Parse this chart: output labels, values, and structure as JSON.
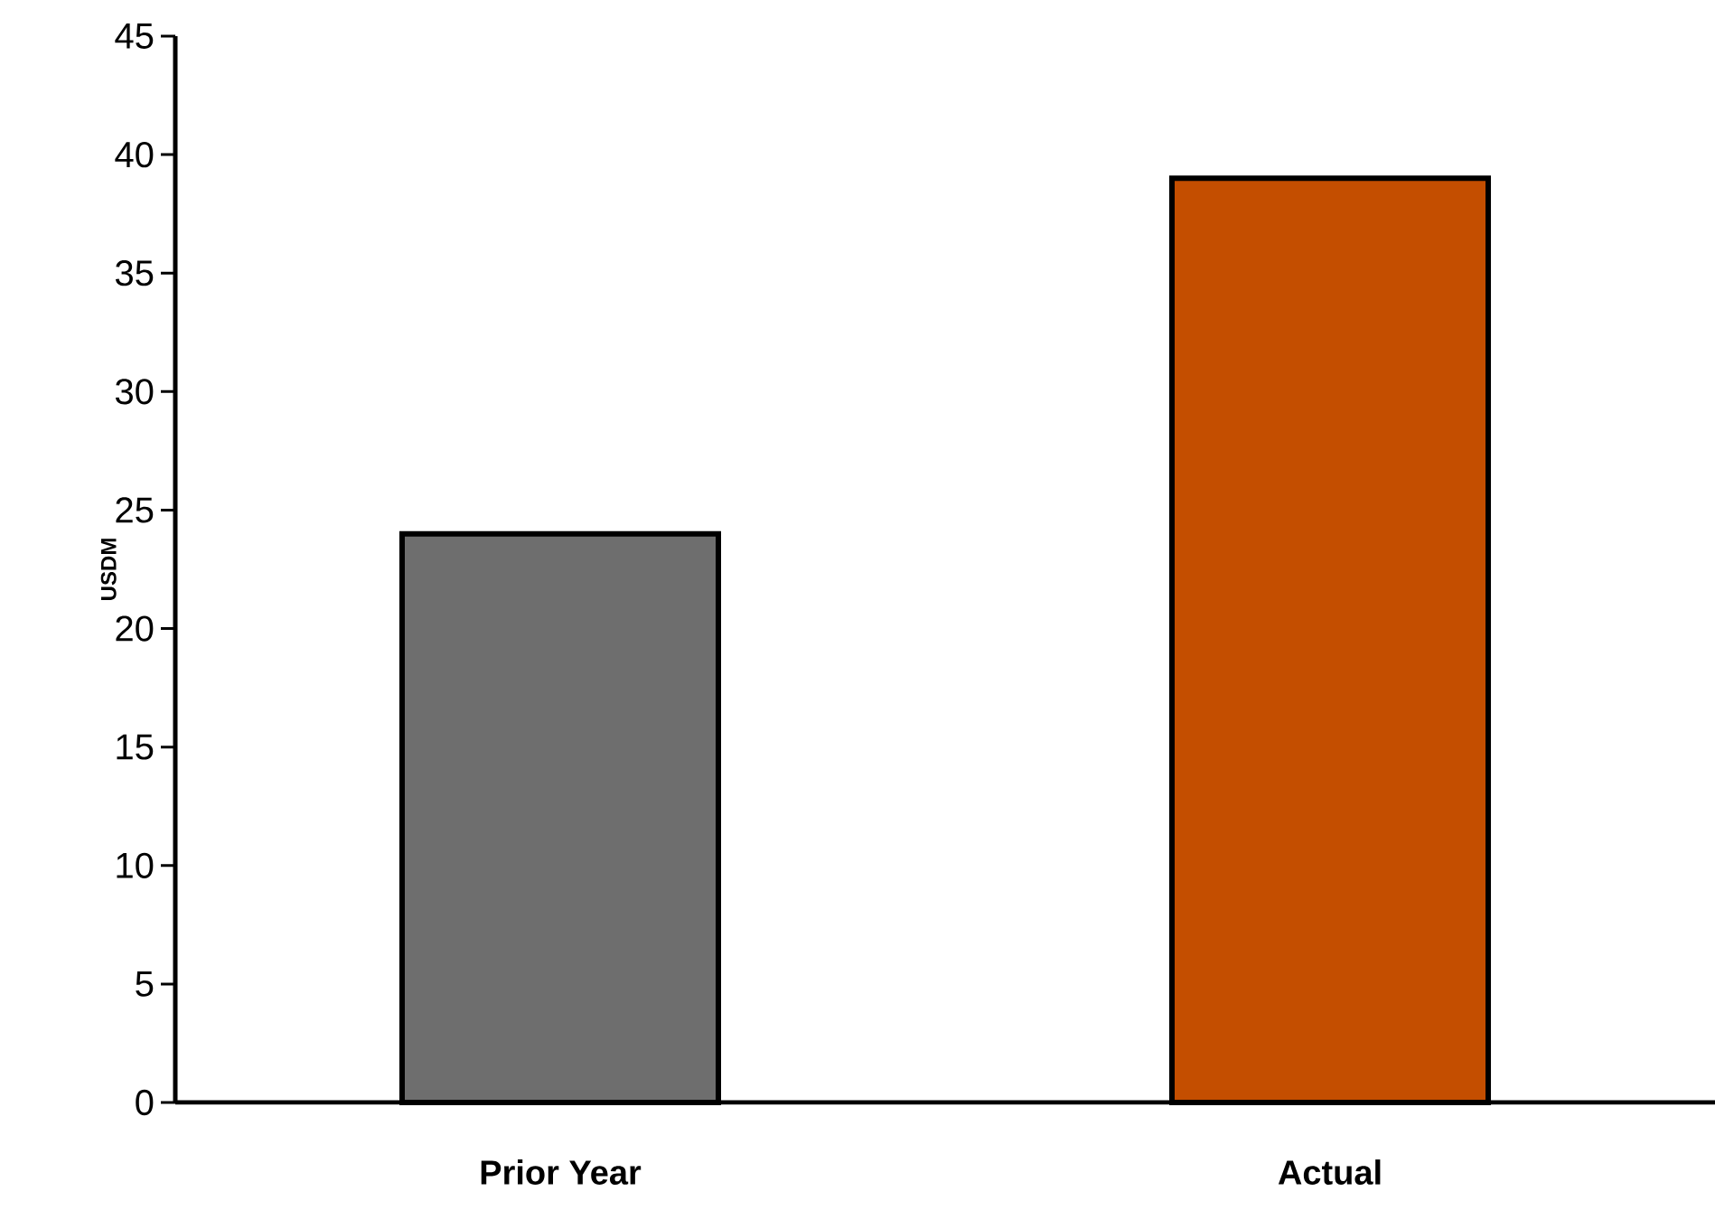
{
  "chart_data": {
    "type": "bar",
    "ylabel": "USDM",
    "categories": [
      "Prior Year",
      "Actual"
    ],
    "values": [
      24,
      39
    ],
    "colors": [
      "#6e6e6e",
      "#c44e00"
    ],
    "ylim": [
      0,
      45
    ],
    "yticks": [
      0,
      5,
      10,
      15,
      20,
      25,
      30,
      35,
      40,
      45
    ],
    "grid": false
  }
}
